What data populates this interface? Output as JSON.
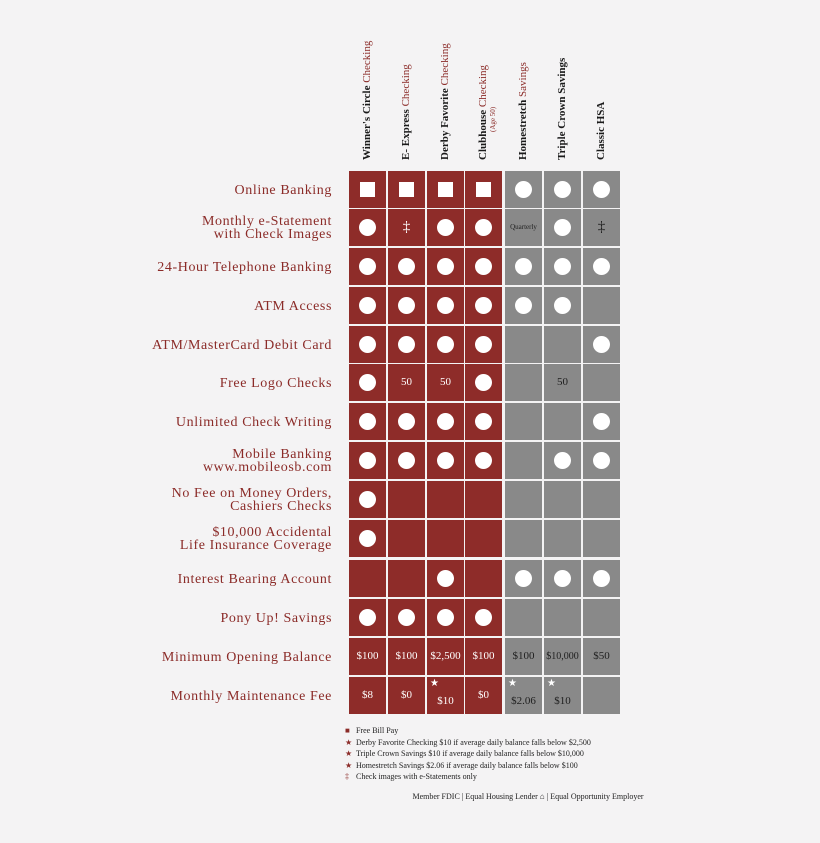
{
  "columns": [
    {
      "bold": "Winner's Circle",
      "light": "Checking",
      "color": "#8e2c29"
    },
    {
      "bold": "E- Express",
      "light": "Checking",
      "color": "#8e2c29"
    },
    {
      "bold": "Derby Favorite",
      "light": "Checking",
      "color": "#8e2c29"
    },
    {
      "bold": "Clubhouse",
      "light": "Checking",
      "note": "(Age 50)",
      "color": "#8e2c29"
    },
    {
      "bold": "Homestretch",
      "light": "Savings",
      "color": "#898989"
    },
    {
      "bold": "Triple Crown Savings",
      "color": "#898989"
    },
    {
      "bold": "Classic HSA",
      "color": "#898989"
    }
  ],
  "rows": [
    {
      "label": [
        "Online Banking"
      ],
      "cells": [
        {
          "mark": "square"
        },
        {
          "mark": "square"
        },
        {
          "mark": "square"
        },
        {
          "mark": "square"
        },
        {
          "mark": "circle"
        },
        {
          "mark": "circle"
        },
        {
          "mark": "circle"
        }
      ]
    },
    {
      "label": [
        "Monthly e-Statement",
        "with Check Images"
      ],
      "cells": [
        {
          "mark": "circle"
        },
        {
          "text": "‡"
        },
        {
          "mark": "circle"
        },
        {
          "mark": "circle"
        },
        {
          "text": "Quarterly"
        },
        {
          "mark": "circle"
        },
        {
          "text": "‡"
        }
      ]
    },
    {
      "label": [
        "24-Hour Telephone Banking"
      ],
      "cells": [
        {
          "mark": "circle"
        },
        {
          "mark": "circle"
        },
        {
          "mark": "circle"
        },
        {
          "mark": "circle"
        },
        {
          "mark": "circle"
        },
        {
          "mark": "circle"
        },
        {
          "mark": "circle"
        }
      ]
    },
    {
      "label": [
        "ATM Access"
      ],
      "cells": [
        {
          "mark": "circle"
        },
        {
          "mark": "circle"
        },
        {
          "mark": "circle"
        },
        {
          "mark": "circle"
        },
        {
          "mark": "circle"
        },
        {
          "mark": "circle"
        },
        null
      ]
    },
    {
      "label": [
        "ATM/MasterCard Debit Card"
      ],
      "cells": [
        {
          "mark": "circle"
        },
        {
          "mark": "circle"
        },
        {
          "mark": "circle"
        },
        {
          "mark": "circle"
        },
        null,
        null,
        {
          "mark": "circle"
        }
      ]
    },
    {
      "label": [
        "Free Logo Checks"
      ],
      "cells": [
        {
          "mark": "circle"
        },
        {
          "text": "50"
        },
        {
          "text": "50"
        },
        {
          "mark": "circle"
        },
        null,
        {
          "text": "50"
        },
        null
      ]
    },
    {
      "label": [
        "Unlimited Check Writing"
      ],
      "cells": [
        {
          "mark": "circle"
        },
        {
          "mark": "circle"
        },
        {
          "mark": "circle"
        },
        {
          "mark": "circle"
        },
        null,
        null,
        {
          "mark": "circle"
        }
      ]
    },
    {
      "label": [
        "Mobile Banking",
        "www.mobileosb.com"
      ],
      "cells": [
        {
          "mark": "circle"
        },
        {
          "mark": "circle"
        },
        {
          "mark": "circle"
        },
        {
          "mark": "circle"
        },
        null,
        {
          "mark": "circle"
        },
        {
          "mark": "circle"
        }
      ]
    },
    {
      "label": [
        "No Fee on Money Orders,",
        "Cashiers Checks"
      ],
      "cells": [
        {
          "mark": "circle"
        },
        null,
        null,
        null,
        null,
        null,
        null
      ]
    },
    {
      "label": [
        "$10,000 Accidental",
        "Life Insurance Coverage"
      ],
      "cells": [
        {
          "mark": "circle"
        },
        null,
        null,
        null,
        null,
        null,
        null
      ]
    },
    {
      "label": [
        "Interest Bearing Account"
      ],
      "cells": [
        null,
        null,
        {
          "mark": "circle"
        },
        null,
        {
          "mark": "circle"
        },
        {
          "mark": "circle"
        },
        {
          "mark": "circle"
        }
      ]
    },
    {
      "label": [
        "Pony Up! Savings"
      ],
      "cells": [
        {
          "mark": "circle"
        },
        {
          "mark": "circle"
        },
        {
          "mark": "circle"
        },
        {
          "mark": "circle"
        },
        null,
        null,
        null
      ]
    },
    {
      "label": [
        "Minimum Opening Balance"
      ],
      "cells": [
        {
          "text": "$100"
        },
        {
          "text": "$100"
        },
        {
          "text": "$2,500"
        },
        {
          "text": "$100"
        },
        {
          "text": "$100"
        },
        {
          "text": "$10,000"
        },
        {
          "text": "$50"
        }
      ]
    },
    {
      "label": [
        "Monthly Maintenance Fee"
      ],
      "cells": [
        {
          "text": "$8"
        },
        {
          "text": "$0"
        },
        {
          "text": "$10",
          "star": "★"
        },
        {
          "text": "$0"
        },
        {
          "text": "$2.06",
          "star": "★"
        },
        {
          "text": "$10",
          "star": "★"
        },
        null
      ]
    }
  ],
  "footnotes": [
    {
      "symbol": "■",
      "text": "Free Bill Pay"
    },
    {
      "symbol": "★",
      "text": "Derby Favorite Checking $10 if average daily balance falls below  $2,500"
    },
    {
      "symbol": "★",
      "text": "Triple Crown Savings $10 if average daily balance falls below $10,000"
    },
    {
      "symbol": "★",
      "text": "Homestretch Savings $2.06 if average daily balance falls below $100"
    },
    {
      "symbol": "‡",
      "text": "Check images with e-Statements only"
    }
  ],
  "footer": "Member FDIC | Equal Housing Lender ⌂ | Equal Opportunity Employer"
}
